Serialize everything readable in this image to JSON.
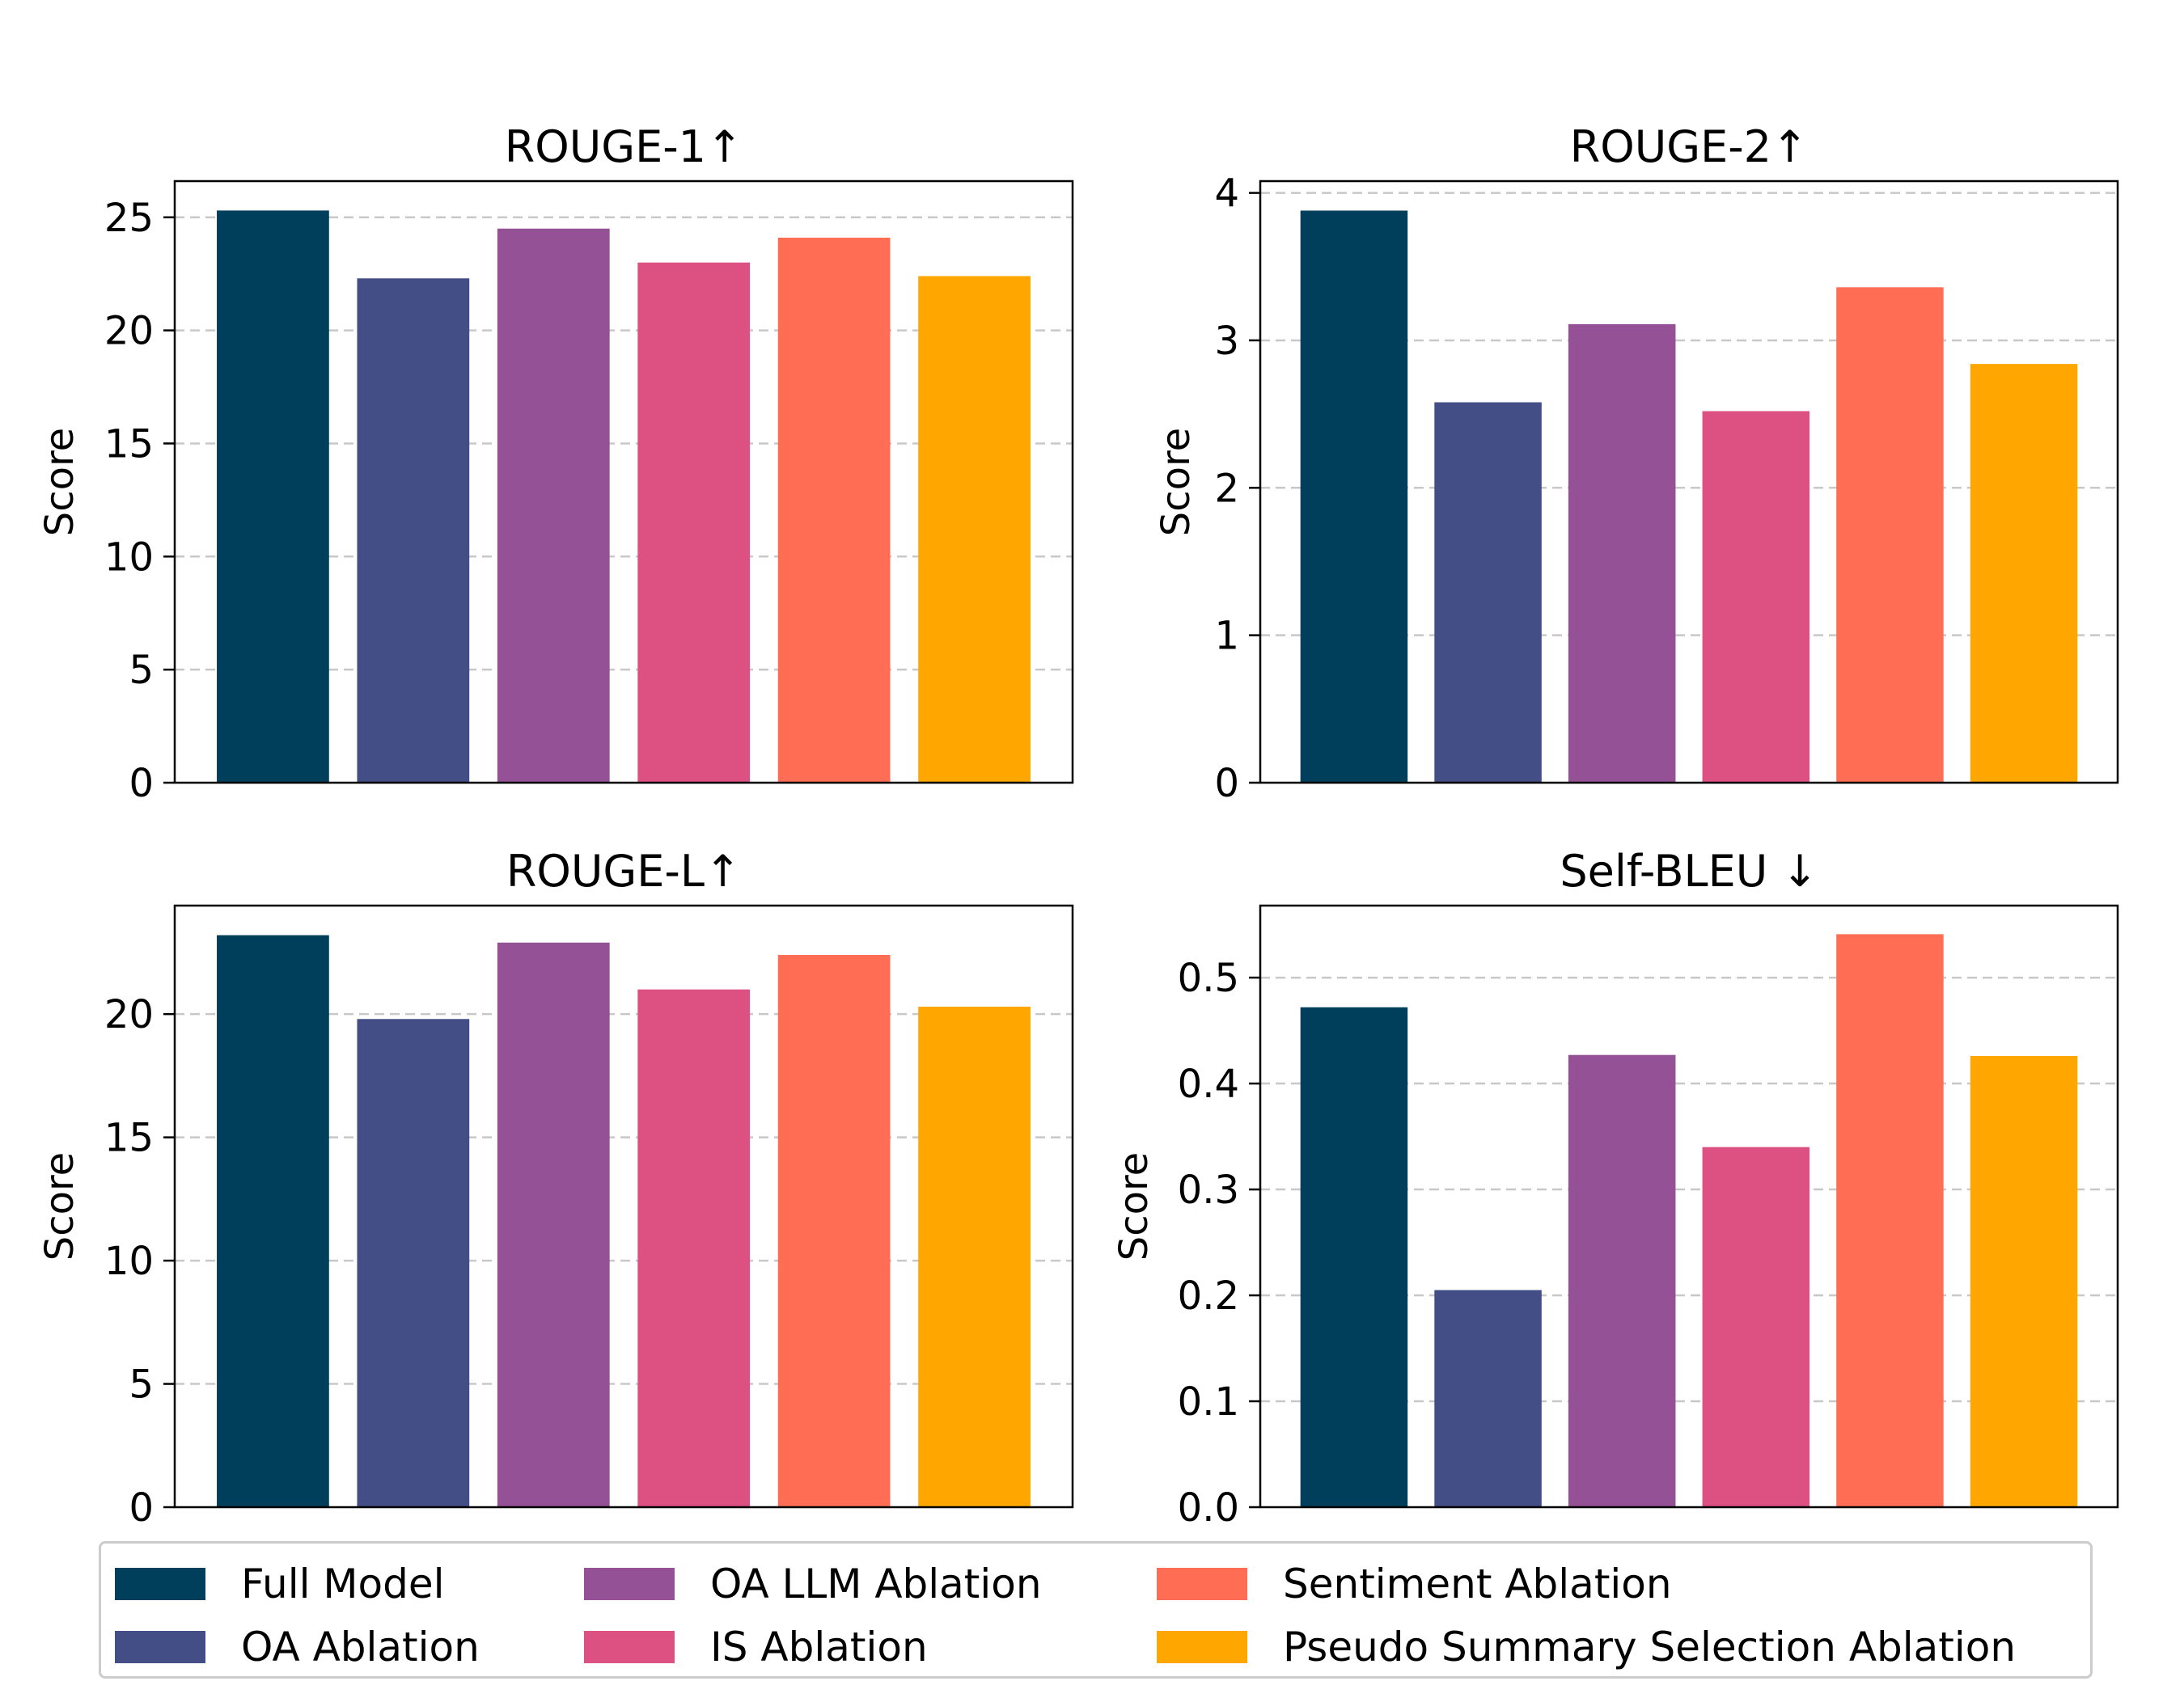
{
  "legend": {
    "items": [
      {
        "label": "Full Model",
        "color": "#003f5c"
      },
      {
        "label": "OA Ablation",
        "color": "#444e86"
      },
      {
        "label": "OA LLM Ablation",
        "color": "#955196"
      },
      {
        "label": "IS Ablation",
        "color": "#dd5182"
      },
      {
        "label": "Sentiment Ablation",
        "color": "#ff6e54"
      },
      {
        "label": "Pseudo Summary Selection Ablation",
        "color": "#ffa600"
      }
    ]
  },
  "chart_data": [
    {
      "type": "bar",
      "title": "ROUGE-1↑",
      "ylabel": "Score",
      "xlabel": "",
      "categories": [
        "Full Model",
        "OA Ablation",
        "OA LLM Ablation",
        "IS Ablation",
        "Sentiment Ablation",
        "Pseudo Summary Selection Ablation"
      ],
      "values": [
        25.3,
        22.3,
        24.5,
        23.0,
        24.1,
        22.4
      ],
      "ylim": [
        0,
        26.6
      ],
      "yticks": [
        0,
        5,
        10,
        15,
        20,
        25
      ],
      "tick_labels": [
        "0",
        "5",
        "10",
        "15",
        "20",
        "25"
      ],
      "grid": true
    },
    {
      "type": "bar",
      "title": "ROUGE-2↑",
      "ylabel": "Score",
      "xlabel": "",
      "categories": [
        "Full Model",
        "OA Ablation",
        "OA LLM Ablation",
        "IS Ablation",
        "Sentiment Ablation",
        "Pseudo Summary Selection Ablation"
      ],
      "values": [
        3.88,
        2.58,
        3.11,
        2.52,
        3.36,
        2.84
      ],
      "ylim": [
        0,
        4.08
      ],
      "yticks": [
        0,
        1,
        2,
        3,
        4
      ],
      "tick_labels": [
        "0",
        "1",
        "2",
        "3",
        "4"
      ],
      "grid": true
    },
    {
      "type": "bar",
      "title": "ROUGE-L↑",
      "ylabel": "Score",
      "xlabel": "",
      "categories": [
        "Full Model",
        "OA Ablation",
        "OA LLM Ablation",
        "IS Ablation",
        "Sentiment Ablation",
        "Pseudo Summary Selection Ablation"
      ],
      "values": [
        23.2,
        19.8,
        22.9,
        21.0,
        22.4,
        20.3
      ],
      "ylim": [
        0,
        24.4
      ],
      "yticks": [
        0,
        5,
        10,
        15,
        20
      ],
      "tick_labels": [
        "0",
        "5",
        "10",
        "15",
        "20"
      ],
      "grid": true
    },
    {
      "type": "bar",
      "title": "Self-BLEU ↓",
      "ylabel": "Score",
      "xlabel": "",
      "categories": [
        "Full Model",
        "OA Ablation",
        "OA LLM Ablation",
        "IS Ablation",
        "Sentiment Ablation",
        "Pseudo Summary Selection Ablation"
      ],
      "values": [
        0.472,
        0.205,
        0.427,
        0.34,
        0.541,
        0.426
      ],
      "ylim": [
        0,
        0.568
      ],
      "yticks": [
        0.0,
        0.1,
        0.2,
        0.3,
        0.4,
        0.5
      ],
      "tick_labels": [
        "0.0",
        "0.1",
        "0.2",
        "0.3",
        "0.4",
        "0.5"
      ],
      "grid": true
    }
  ]
}
